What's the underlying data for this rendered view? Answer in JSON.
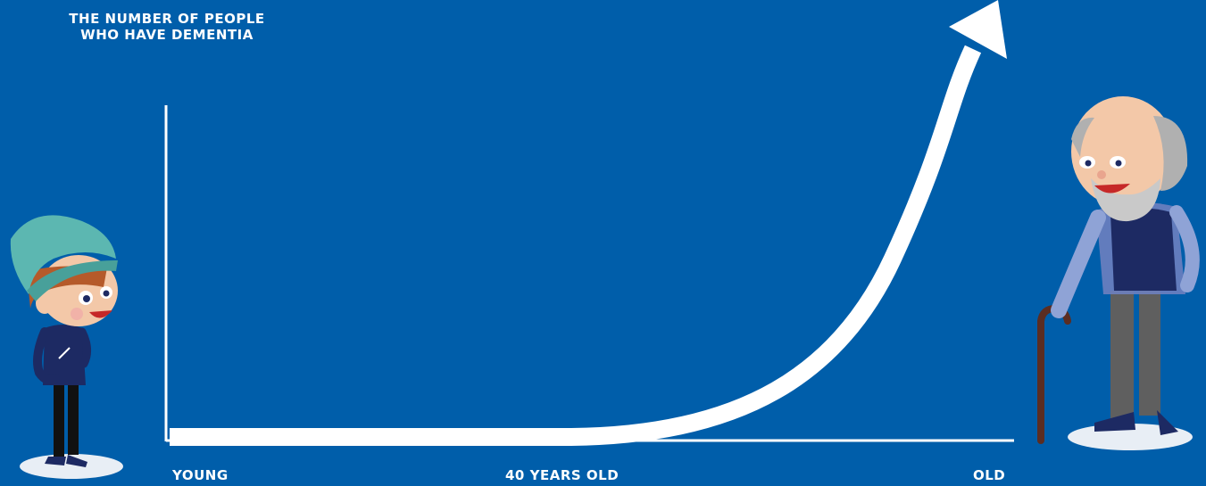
{
  "chart_data": {
    "type": "line",
    "title": "",
    "ylabel": "THE NUMBER OF PEOPLE WHO HAVE DEMENTIA",
    "xlabel": "",
    "x_tick_labels": [
      "YOUNG",
      "40 YEARS OLD",
      "OLD"
    ],
    "trend": "flat until 40 years old, then rising steeply toward old age",
    "grid": false,
    "legend": "none"
  },
  "illustrations": {
    "left": "young-person-icon",
    "right": "elderly-man-with-cane-icon"
  },
  "colors": {
    "background": "#005eaa",
    "axis": "#ffffff",
    "curve": "#ffffff"
  }
}
